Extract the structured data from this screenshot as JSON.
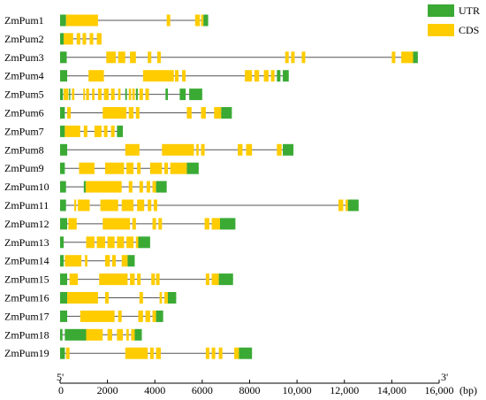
{
  "chart_data": {
    "type": "gene-structure",
    "title": "",
    "xlabel": "",
    "x_unit": "(bp)",
    "xlim": [
      0,
      16000
    ],
    "x_ticks": [
      0,
      2000,
      4000,
      6000,
      8000,
      10000,
      12000,
      14000,
      16000
    ],
    "x_tick_labels": [
      "0",
      "2000",
      "4000",
      "6000",
      "8000",
      "10,000",
      "12,000",
      "14,000",
      "16,000"
    ],
    "end_labels": {
      "five_prime": "5'",
      "three_prime": "3'"
    },
    "legend": [
      {
        "name": "UTR",
        "color": "#3aaa35"
      },
      {
        "name": "CDS",
        "color": "#ffcc00"
      }
    ],
    "colors": {
      "UTR": "#3aaa35",
      "CDS": "#ffcc00",
      "intron": "#555555"
    },
    "genes": [
      {
        "name": "ZmPum1",
        "length": 6250,
        "features": [
          {
            "t": "UTR",
            "s": 0,
            "e": 250
          },
          {
            "t": "CDS",
            "s": 250,
            "e": 1600
          },
          {
            "t": "CDS",
            "s": 4500,
            "e": 4650
          },
          {
            "t": "CDS",
            "s": 5700,
            "e": 5900
          },
          {
            "t": "CDS",
            "s": 5950,
            "e": 6050
          },
          {
            "t": "UTR",
            "s": 6050,
            "e": 6250
          }
        ]
      },
      {
        "name": "ZmPum2",
        "length": 1750,
        "features": [
          {
            "t": "UTR",
            "s": 0,
            "e": 150
          },
          {
            "t": "CDS",
            "s": 150,
            "e": 550
          },
          {
            "t": "CDS",
            "s": 700,
            "e": 850
          },
          {
            "t": "CDS",
            "s": 950,
            "e": 1100
          },
          {
            "t": "CDS",
            "s": 1250,
            "e": 1400
          },
          {
            "t": "CDS",
            "s": 1550,
            "e": 1750
          }
        ]
      },
      {
        "name": "ZmPum3",
        "length": 15100,
        "features": [
          {
            "t": "UTR",
            "s": 0,
            "e": 280
          },
          {
            "t": "CDS",
            "s": 1950,
            "e": 2350
          },
          {
            "t": "CDS",
            "s": 2450,
            "e": 2750
          },
          {
            "t": "CDS",
            "s": 2950,
            "e": 3200
          },
          {
            "t": "CDS",
            "s": 3700,
            "e": 3850
          },
          {
            "t": "CDS",
            "s": 4100,
            "e": 4250
          },
          {
            "t": "CDS",
            "s": 9500,
            "e": 9650
          },
          {
            "t": "CDS",
            "s": 9750,
            "e": 9900
          },
          {
            "t": "CDS",
            "s": 10200,
            "e": 10350
          },
          {
            "t": "CDS",
            "s": 14000,
            "e": 14150
          },
          {
            "t": "CDS",
            "s": 14400,
            "e": 14900
          },
          {
            "t": "UTR",
            "s": 14900,
            "e": 15100
          }
        ]
      },
      {
        "name": "ZmPum4",
        "length": 9650,
        "features": [
          {
            "t": "UTR",
            "s": 0,
            "e": 300
          },
          {
            "t": "CDS",
            "s": 1200,
            "e": 1850
          },
          {
            "t": "CDS",
            "s": 3500,
            "e": 4800
          },
          {
            "t": "CDS",
            "s": 4850,
            "e": 5000
          },
          {
            "t": "CDS",
            "s": 5150,
            "e": 5300
          },
          {
            "t": "CDS",
            "s": 7800,
            "e": 8100
          },
          {
            "t": "CDS",
            "s": 8200,
            "e": 8400
          },
          {
            "t": "CDS",
            "s": 8600,
            "e": 8800
          },
          {
            "t": "CDS",
            "s": 8900,
            "e": 9050
          },
          {
            "t": "UTR",
            "s": 9150,
            "e": 9300
          },
          {
            "t": "UTR",
            "s": 9400,
            "e": 9650
          }
        ]
      },
      {
        "name": "ZmPum5",
        "length": 6000,
        "features": [
          {
            "t": "UTR",
            "s": 0,
            "e": 120
          },
          {
            "t": "CDS",
            "s": 150,
            "e": 350
          },
          {
            "t": "UTR",
            "s": 380,
            "e": 430
          },
          {
            "t": "CDS",
            "s": 500,
            "e": 600
          },
          {
            "t": "CDS",
            "s": 980,
            "e": 1050
          },
          {
            "t": "CDS",
            "s": 1100,
            "e": 1220
          },
          {
            "t": "CDS",
            "s": 1350,
            "e": 1450
          },
          {
            "t": "CDS",
            "s": 1600,
            "e": 1750
          },
          {
            "t": "CDS",
            "s": 1850,
            "e": 2050
          },
          {
            "t": "CDS",
            "s": 2150,
            "e": 2300
          },
          {
            "t": "CDS",
            "s": 2450,
            "e": 2550
          },
          {
            "t": "UTR",
            "s": 2750,
            "e": 2820
          },
          {
            "t": "CDS",
            "s": 2900,
            "e": 3000
          },
          {
            "t": "CDS",
            "s": 3050,
            "e": 3150
          },
          {
            "t": "UTR",
            "s": 3200,
            "e": 3280
          },
          {
            "t": "CDS",
            "s": 3350,
            "e": 3500
          },
          {
            "t": "CDS",
            "s": 3600,
            "e": 3750
          },
          {
            "t": "UTR",
            "s": 4450,
            "e": 4550
          },
          {
            "t": "UTR",
            "s": 5050,
            "e": 5300
          },
          {
            "t": "UTR",
            "s": 5450,
            "e": 6000
          }
        ]
      },
      {
        "name": "ZmPum6",
        "length": 7250,
        "features": [
          {
            "t": "UTR",
            "s": 0,
            "e": 200
          },
          {
            "t": "CDS",
            "s": 300,
            "e": 450
          },
          {
            "t": "CDS",
            "s": 1800,
            "e": 2800
          },
          {
            "t": "CDS",
            "s": 2900,
            "e": 3100
          },
          {
            "t": "CDS",
            "s": 3200,
            "e": 3350
          },
          {
            "t": "CDS",
            "s": 5350,
            "e": 5550
          },
          {
            "t": "CDS",
            "s": 5950,
            "e": 6150
          },
          {
            "t": "CDS",
            "s": 6500,
            "e": 6800
          },
          {
            "t": "UTR",
            "s": 6800,
            "e": 7250
          }
        ]
      },
      {
        "name": "ZmPum7",
        "length": 2650,
        "features": [
          {
            "t": "UTR",
            "s": 0,
            "e": 200
          },
          {
            "t": "CDS",
            "s": 200,
            "e": 850
          },
          {
            "t": "CDS",
            "s": 1000,
            "e": 1150
          },
          {
            "t": "CDS",
            "s": 1450,
            "e": 1750
          },
          {
            "t": "CDS",
            "s": 1850,
            "e": 2000
          },
          {
            "t": "CDS",
            "s": 2150,
            "e": 2300
          },
          {
            "t": "UTR",
            "s": 2400,
            "e": 2650
          }
        ]
      },
      {
        "name": "ZmPum8",
        "length": 9850,
        "features": [
          {
            "t": "UTR",
            "s": 0,
            "e": 300
          },
          {
            "t": "CDS",
            "s": 2750,
            "e": 3350
          },
          {
            "t": "CDS",
            "s": 4300,
            "e": 5650
          },
          {
            "t": "CDS",
            "s": 5750,
            "e": 5850
          },
          {
            "t": "CDS",
            "s": 5950,
            "e": 6100
          },
          {
            "t": "CDS",
            "s": 7500,
            "e": 7700
          },
          {
            "t": "CDS",
            "s": 7850,
            "e": 8100
          },
          {
            "t": "CDS",
            "s": 9150,
            "e": 9350
          },
          {
            "t": "UTR",
            "s": 9400,
            "e": 9850
          }
        ]
      },
      {
        "name": "ZmPum9",
        "length": 5850,
        "features": [
          {
            "t": "UTR",
            "s": 0,
            "e": 200
          },
          {
            "t": "CDS",
            "s": 800,
            "e": 1450
          },
          {
            "t": "CDS",
            "s": 1900,
            "e": 2700
          },
          {
            "t": "CDS",
            "s": 2800,
            "e": 3100
          },
          {
            "t": "CDS",
            "s": 3250,
            "e": 3400
          },
          {
            "t": "CDS",
            "s": 3800,
            "e": 4300
          },
          {
            "t": "CDS",
            "s": 4400,
            "e": 4550
          },
          {
            "t": "CDS",
            "s": 4650,
            "e": 5350
          },
          {
            "t": "UTR",
            "s": 5350,
            "e": 5850
          }
        ]
      },
      {
        "name": "ZmPum10",
        "length": 4500,
        "features": [
          {
            "t": "UTR",
            "s": 0,
            "e": 250
          },
          {
            "t": "UTR",
            "s": 1000,
            "e": 1080
          },
          {
            "t": "CDS",
            "s": 1080,
            "e": 2600
          },
          {
            "t": "CDS",
            "s": 2900,
            "e": 3050
          },
          {
            "t": "CDS",
            "s": 3350,
            "e": 3500
          },
          {
            "t": "CDS",
            "s": 3650,
            "e": 3800
          },
          {
            "t": "CDS",
            "s": 3900,
            "e": 4050
          },
          {
            "t": "UTR",
            "s": 4050,
            "e": 4500
          }
        ]
      },
      {
        "name": "ZmPum11",
        "length": 12600,
        "features": [
          {
            "t": "UTR",
            "s": 0,
            "e": 250
          },
          {
            "t": "CDS",
            "s": 600,
            "e": 680
          },
          {
            "t": "CDS",
            "s": 750,
            "e": 1250
          },
          {
            "t": "CDS",
            "s": 1700,
            "e": 2450
          },
          {
            "t": "CDS",
            "s": 2600,
            "e": 3100
          },
          {
            "t": "CDS",
            "s": 3250,
            "e": 3550
          },
          {
            "t": "CDS",
            "s": 3700,
            "e": 3850
          },
          {
            "t": "CDS",
            "s": 3950,
            "e": 4100
          },
          {
            "t": "CDS",
            "s": 11750,
            "e": 11950
          },
          {
            "t": "CDS",
            "s": 12050,
            "e": 12150
          },
          {
            "t": "UTR",
            "s": 12150,
            "e": 12600
          }
        ]
      },
      {
        "name": "ZmPum12",
        "length": 7400,
        "features": [
          {
            "t": "UTR",
            "s": 0,
            "e": 300
          },
          {
            "t": "CDS",
            "s": 350,
            "e": 700
          },
          {
            "t": "CDS",
            "s": 1800,
            "e": 2950
          },
          {
            "t": "CDS",
            "s": 3050,
            "e": 3200
          },
          {
            "t": "CDS",
            "s": 3900,
            "e": 4050
          },
          {
            "t": "CDS",
            "s": 4150,
            "e": 4300
          },
          {
            "t": "CDS",
            "s": 6100,
            "e": 6300
          },
          {
            "t": "CDS",
            "s": 6400,
            "e": 6750
          },
          {
            "t": "UTR",
            "s": 6750,
            "e": 7400
          }
        ]
      },
      {
        "name": "ZmPum13",
        "length": 3800,
        "features": [
          {
            "t": "UTR",
            "s": 0,
            "e": 150
          },
          {
            "t": "CDS",
            "s": 1100,
            "e": 1450
          },
          {
            "t": "CDS",
            "s": 1550,
            "e": 1900
          },
          {
            "t": "CDS",
            "s": 2000,
            "e": 2300
          },
          {
            "t": "CDS",
            "s": 2400,
            "e": 2700
          },
          {
            "t": "CDS",
            "s": 2800,
            "e": 3100
          },
          {
            "t": "CDS",
            "s": 3200,
            "e": 3300
          },
          {
            "t": "UTR",
            "s": 3300,
            "e": 3800
          }
        ]
      },
      {
        "name": "ZmPum14",
        "length": 3150,
        "features": [
          {
            "t": "UTR",
            "s": 0,
            "e": 150
          },
          {
            "t": "CDS",
            "s": 200,
            "e": 900
          },
          {
            "t": "CDS",
            "s": 1050,
            "e": 1150
          },
          {
            "t": "CDS",
            "s": 1900,
            "e": 2100
          },
          {
            "t": "CDS",
            "s": 2200,
            "e": 2350
          },
          {
            "t": "CDS",
            "s": 2600,
            "e": 2850
          },
          {
            "t": "UTR",
            "s": 2850,
            "e": 3150
          }
        ]
      },
      {
        "name": "ZmPum15",
        "length": 7300,
        "features": [
          {
            "t": "UTR",
            "s": 0,
            "e": 300
          },
          {
            "t": "CDS",
            "s": 400,
            "e": 750
          },
          {
            "t": "CDS",
            "s": 1650,
            "e": 2850
          },
          {
            "t": "CDS",
            "s": 2950,
            "e": 3150
          },
          {
            "t": "CDS",
            "s": 3250,
            "e": 3400
          },
          {
            "t": "CDS",
            "s": 3850,
            "e": 4000
          },
          {
            "t": "CDS",
            "s": 4050,
            "e": 4200
          },
          {
            "t": "CDS",
            "s": 6150,
            "e": 6300
          },
          {
            "t": "CDS",
            "s": 6400,
            "e": 6700
          },
          {
            "t": "UTR",
            "s": 6700,
            "e": 7300
          }
        ]
      },
      {
        "name": "ZmPum16",
        "length": 4900,
        "features": [
          {
            "t": "UTR",
            "s": 0,
            "e": 300
          },
          {
            "t": "CDS",
            "s": 300,
            "e": 1600
          },
          {
            "t": "CDS",
            "s": 1900,
            "e": 2050
          },
          {
            "t": "CDS",
            "s": 3350,
            "e": 3500
          },
          {
            "t": "CDS",
            "s": 4200,
            "e": 4300
          },
          {
            "t": "CDS",
            "s": 4400,
            "e": 4550
          },
          {
            "t": "UTR",
            "s": 4550,
            "e": 4900
          }
        ]
      },
      {
        "name": "ZmPum17",
        "length": 4350,
        "features": [
          {
            "t": "UTR",
            "s": 0,
            "e": 300
          },
          {
            "t": "CDS",
            "s": 850,
            "e": 950
          },
          {
            "t": "CDS",
            "s": 950,
            "e": 2300
          },
          {
            "t": "CDS",
            "s": 2450,
            "e": 2600
          },
          {
            "t": "CDS",
            "s": 3300,
            "e": 3500
          },
          {
            "t": "CDS",
            "s": 3600,
            "e": 3800
          },
          {
            "t": "CDS",
            "s": 3900,
            "e": 4050
          },
          {
            "t": "UTR",
            "s": 4050,
            "e": 4350
          }
        ]
      },
      {
        "name": "ZmPum18",
        "length": 3450,
        "features": [
          {
            "t": "UTR",
            "s": 0,
            "e": 100
          },
          {
            "t": "UTR",
            "s": 200,
            "e": 1100
          },
          {
            "t": "CDS",
            "s": 1100,
            "e": 1800
          },
          {
            "t": "CDS",
            "s": 2000,
            "e": 2200
          },
          {
            "t": "CDS",
            "s": 2400,
            "e": 2650
          },
          {
            "t": "CDS",
            "s": 2800,
            "e": 2900
          },
          {
            "t": "CDS",
            "s": 3000,
            "e": 3150
          },
          {
            "t": "UTR",
            "s": 3150,
            "e": 3450
          }
        ]
      },
      {
        "name": "ZmPum19",
        "length": 8100,
        "features": [
          {
            "t": "UTR",
            "s": 0,
            "e": 200
          },
          {
            "t": "CDS",
            "s": 250,
            "e": 400
          },
          {
            "t": "CDS",
            "s": 2750,
            "e": 3700
          },
          {
            "t": "CDS",
            "s": 3800,
            "e": 3950
          },
          {
            "t": "CDS",
            "s": 4050,
            "e": 4250
          },
          {
            "t": "CDS",
            "s": 6150,
            "e": 6300
          },
          {
            "t": "CDS",
            "s": 6400,
            "e": 6550
          },
          {
            "t": "CDS",
            "s": 6700,
            "e": 6850
          },
          {
            "t": "CDS",
            "s": 7350,
            "e": 7550
          },
          {
            "t": "UTR",
            "s": 7550,
            "e": 8100
          }
        ]
      }
    ]
  }
}
